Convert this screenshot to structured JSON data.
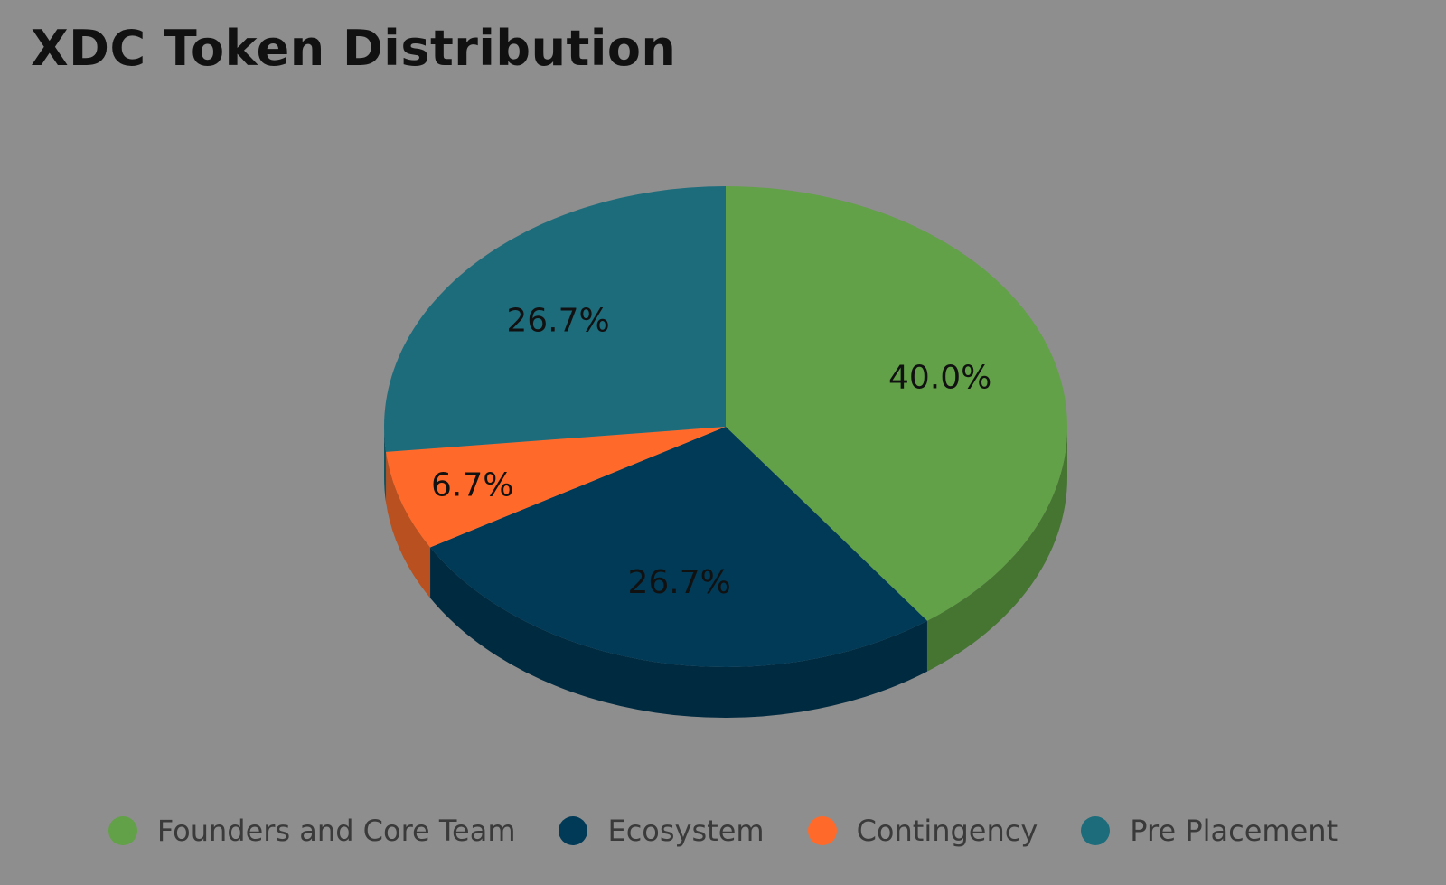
{
  "chart_data": {
    "type": "pie",
    "title": "XDC Token Distribution",
    "legend_position": "bottom",
    "slices": [
      {
        "name": "Founders and Core Team",
        "value": 40.0,
        "label": "40.0%",
        "color": "#62a147",
        "side": "#467532"
      },
      {
        "name": "Ecosystem",
        "value": 26.7,
        "label": "26.7%",
        "color": "#003a57",
        "side": "#002a40"
      },
      {
        "name": "Contingency",
        "value": 6.7,
        "label": "6.7%",
        "color": "#ff6a2b",
        "side": "#b8501f"
      },
      {
        "name": "Pre Placement",
        "value": 26.7,
        "label": "26.7%",
        "color": "#1d6c7c",
        "side": "#155260"
      }
    ]
  }
}
